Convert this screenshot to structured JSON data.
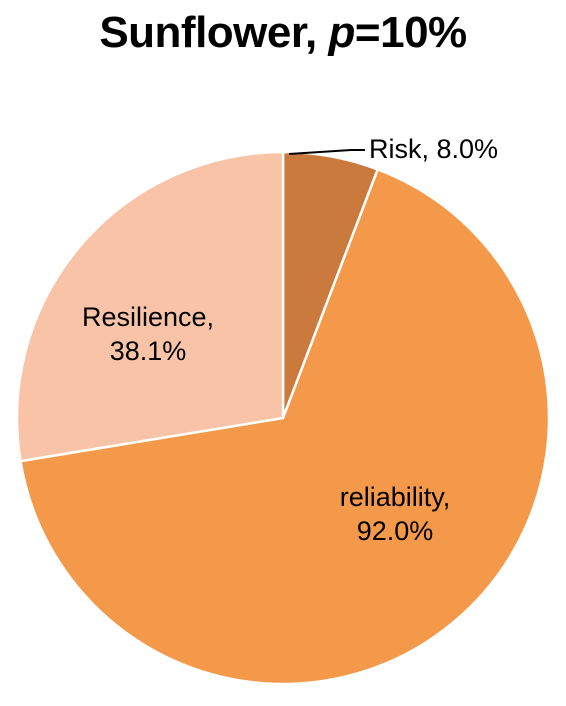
{
  "chart_data": {
    "type": "pie",
    "title": {
      "prefix": "Sunflower, ",
      "variable": "p",
      "suffix": "=10%"
    },
    "slices": [
      {
        "label": "Risk",
        "value": 8.0,
        "display": "8.0%",
        "color": "#C97A3C"
      },
      {
        "label": "reliability",
        "value": 92.0,
        "display": "92.0%",
        "color": "#F4994A"
      },
      {
        "label": "Resilience",
        "value": 38.1,
        "display": "38.1%",
        "color": "#F8C3A6"
      }
    ],
    "data_label_format": "{label}, {display}"
  },
  "colors": {
    "slice_border": "#FFFFFF",
    "leader_line": "#000000"
  }
}
